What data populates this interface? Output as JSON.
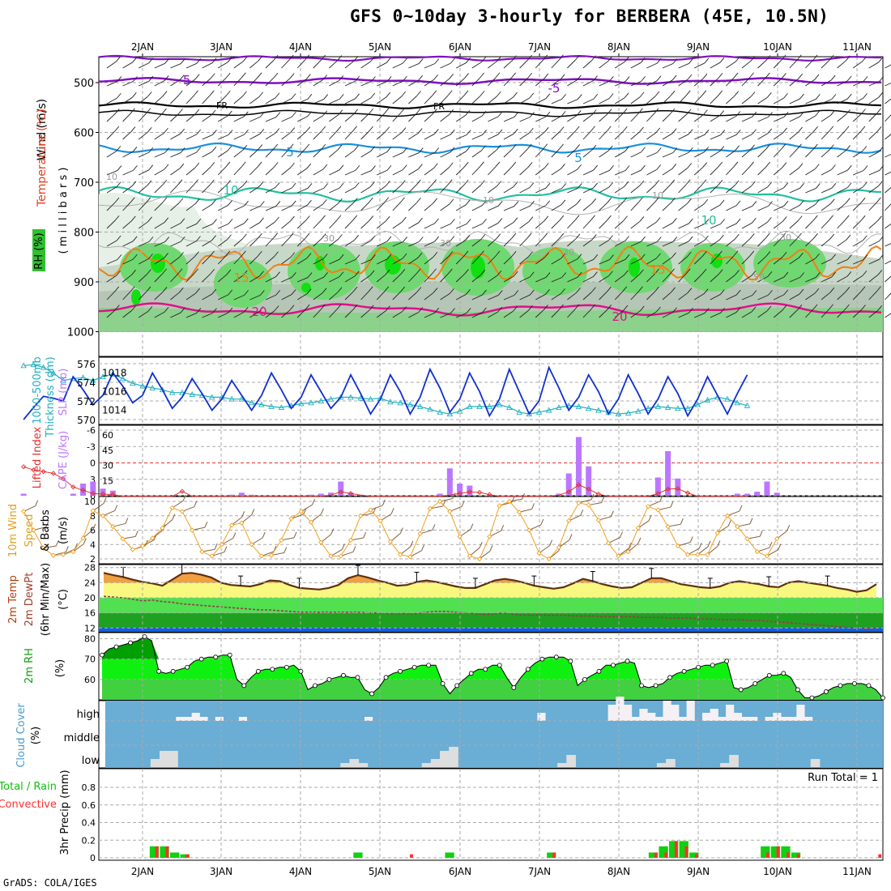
{
  "title": "GFS 0~10day 3-hourly for BERBERA (45E, 10.5N)",
  "footer": "GrADS: COLA/IGES",
  "colors": {
    "grid": "#aaaaaa",
    "cape": "#bb77ff",
    "lifted": "#e03030",
    "slp": "#1030d0",
    "thickness": "#20b0c0",
    "wind_speed": "#f0a020",
    "barb": "#806040",
    "rh_dark": "#00b000",
    "rh_light": "#10f010",
    "cloud_bg": "#6aadd5",
    "cloud_bar": "#dedede",
    "precip_total": "#10d010",
    "precip_conv": "#ff3030"
  },
  "x_axis": {
    "labels": [
      "2JAN",
      "3JAN",
      "4JAN",
      "5JAN",
      "6JAN",
      "7JAN",
      "8JAN",
      "9JAN",
      "10JAN",
      "11JAN"
    ]
  },
  "panels": {
    "upper": {
      "labels": [
        "Wind (m/s)",
        "Temperature (°C)",
        "RH (%)",
        "( m i l l i b a r s )"
      ],
      "yticks": [
        "500",
        "600",
        "700",
        "800",
        "900",
        "1000"
      ],
      "contour_labels": [
        "-5",
        "-5",
        "FR",
        "FR",
        "5",
        "5",
        "10",
        "10",
        "15",
        "15",
        "20",
        "20",
        "10",
        "10",
        "10",
        "30",
        "30",
        "30",
        "30",
        "50"
      ]
    },
    "slp": {
      "labels": [
        "1000-500mb",
        "Thickness (dm)",
        "SLP (mb)"
      ],
      "left_ticks": [
        "576",
        "574",
        "572",
        "570"
      ],
      "right_ticks": [
        "1018",
        "1016",
        "1014"
      ]
    },
    "cape": {
      "labels": [
        "Lifted Index",
        "CAPE (J/kg)"
      ],
      "left_ticks": [
        "-6",
        "-3",
        "0",
        "3",
        "6"
      ],
      "right_ticks": [
        "60",
        "45",
        "30",
        "15"
      ]
    },
    "wind": {
      "labels": [
        "10m Wind",
        "Speed",
        "& Barbs",
        "(m/s)"
      ],
      "ticks": [
        "10",
        "8",
        "6",
        "4",
        "2"
      ]
    },
    "temp": {
      "labels": [
        "2m Temp",
        "2m DewPt",
        "(6hr Min/Max)",
        "(°C)"
      ],
      "ticks": [
        "28",
        "24",
        "20",
        "16",
        "12"
      ]
    },
    "rh": {
      "labels": [
        "2m RH",
        "(%)"
      ],
      "ticks": [
        "80",
        "70",
        "60"
      ]
    },
    "cloud": {
      "labels": [
        "Cloud Cover",
        "(%)"
      ],
      "levels": [
        "high",
        "middle",
        "low"
      ]
    },
    "precip": {
      "labels": [
        "3hr Precip (mm)",
        "Total / Rain",
        "Convective"
      ],
      "ticks": [
        "0.8",
        "0.6",
        "0.4",
        "0.2",
        "0"
      ],
      "run_total": "Run Total = 1"
    }
  },
  "chart_data": [
    {
      "type": "line",
      "name": "SLP",
      "x_unit": "3-hourly steps from 1 Jan 12Z",
      "y_unit": "mb",
      "ylim": [
        1012.5,
        1019.5
      ],
      "values": [
        1013.0,
        1014.3,
        1015.5,
        1015.3,
        1015.0,
        1017.6,
        1016.2,
        1014.6,
        1015.6,
        1018.0,
        1016.6,
        1014.8,
        1015.6,
        1018.0,
        1016.2,
        1014.2,
        1015.4,
        1017.4,
        1015.8,
        1014.0,
        1015.2,
        1017.2,
        1015.6,
        1014.0,
        1015.6,
        1018.0,
        1016.2,
        1014.2,
        1015.4,
        1017.8,
        1016.0,
        1014.2,
        1015.4,
        1017.8,
        1015.8,
        1013.6,
        1015.2,
        1017.8,
        1016.0,
        1013.6,
        1015.4,
        1018.4,
        1016.4,
        1013.8,
        1015.2,
        1018.0,
        1016.0,
        1013.4,
        1015.2,
        1018.4,
        1016.0,
        1013.6,
        1015.0,
        1018.6,
        1016.4,
        1014.0,
        1015.4,
        1017.8,
        1016.0,
        1013.6,
        1015.2,
        1017.8,
        1015.8,
        1013.6,
        1015.2,
        1017.6,
        1015.8,
        1013.4,
        1015.2,
        1017.6,
        1015.6,
        1013.6,
        1015.8,
        1017.8
      ]
    },
    {
      "type": "line",
      "name": "Thickness",
      "y_unit": "dm",
      "ylim": [
        569.6,
        576.4
      ],
      "values": [
        575.8,
        575.9,
        575.6,
        575.0,
        574.2,
        574.4,
        574.5,
        574.2,
        574.6,
        574.9,
        574.4,
        573.9,
        573.6,
        573.4,
        573.2,
        572.9,
        572.9,
        572.7,
        572.6,
        572.4,
        572.4,
        572.2,
        572.2,
        571.8,
        571.6,
        571.4,
        571.3,
        571.5,
        571.7,
        571.8,
        572.0,
        572.2,
        572.4,
        572.4,
        572.3,
        572.2,
        572.3,
        571.9,
        571.8,
        571.6,
        571.4,
        571.1,
        570.8,
        570.6,
        570.9,
        571.4,
        571.4,
        571.4,
        571.6,
        571.3,
        570.8,
        570.6,
        570.8,
        571.0,
        571.3,
        571.5,
        571.4,
        571.2,
        571.0,
        570.8,
        570.6,
        570.7,
        570.9,
        571.2,
        571.4,
        571.3,
        571.2,
        571.2,
        571.6,
        572.1,
        572.4,
        572.2,
        571.8,
        571.5
      ]
    },
    {
      "type": "bar",
      "name": "CAPE",
      "y_unit": "J/kg",
      "ylim": [
        0,
        60
      ],
      "values": [
        2,
        0,
        0,
        0,
        0,
        2,
        12,
        14,
        7,
        5,
        0,
        0,
        0,
        0,
        0,
        0,
        0,
        0,
        0,
        0,
        0,
        1,
        3,
        1,
        0,
        0,
        0,
        0,
        0,
        1,
        2,
        3,
        14,
        3,
        1,
        0,
        0,
        0,
        0,
        0,
        0,
        0,
        2,
        27,
        12,
        10,
        0,
        0,
        0,
        0,
        0,
        0,
        0,
        0,
        2,
        22,
        58,
        29,
        0,
        0,
        0,
        0,
        0,
        0,
        18,
        44,
        17,
        0,
        0,
        0,
        0,
        0,
        2,
        2,
        4,
        14,
        3,
        0,
        0,
        0,
        0,
        0,
        0,
        0,
        0
      ]
    },
    {
      "type": "line",
      "name": "Lifted Index",
      "y_unit": "°C",
      "ylim": [
        -6,
        6
      ],
      "values": [
        0.7,
        1.3,
        1.6,
        1.9,
        2.9,
        4.4,
        5.0,
        5.6,
        5.7,
        5.8,
        6.1,
        6.1,
        6.1,
        6.1,
        6.1,
        6.1,
        5.2,
        6.1,
        6.1,
        6.1,
        6.1,
        6.1,
        6.1,
        6.1,
        6.1,
        6.1,
        6.1,
        6.1,
        6.1,
        6.1,
        6.1,
        5.9,
        5.3,
        5.6,
        5.9,
        6.1,
        6.1,
        6.1,
        6.1,
        6.1,
        6.1,
        6.1,
        6.1,
        5.9,
        5.6,
        5.3,
        5.4,
        5.8,
        6.1,
        6.1,
        6.1,
        6.1,
        6.1,
        6.1,
        5.9,
        5.3,
        4.0,
        4.8,
        5.7,
        6.1,
        6.1,
        6.1,
        6.1,
        6.1,
        5.6,
        4.8,
        4.7,
        5.5,
        6.1,
        6.1,
        6.1,
        6.1,
        6.1,
        6.1
      ]
    },
    {
      "type": "line",
      "name": "10m Wind Speed",
      "y_unit": "m/s",
      "ylim": [
        1.6,
        10.4
      ],
      "values": [
        8.6,
        6.0,
        3.5,
        2.5,
        2.6,
        3.0,
        4.9,
        8.7,
        8.0,
        6.5,
        4.8,
        3.3,
        3.8,
        4.9,
        6.3,
        9.1,
        8.6,
        6.0,
        3.0,
        2.4,
        4.0,
        6.7,
        7.0,
        4.0,
        2.4,
        2.5,
        4.6,
        7.6,
        8.6,
        7.1,
        4.3,
        2.4,
        2.4,
        4.6,
        8.0,
        8.8,
        7.3,
        4.4,
        2.6,
        2.3,
        5.5,
        9.0,
        10.0,
        8.6,
        5.1,
        2.4,
        2.0,
        5.1,
        9.4,
        10.0,
        8.5,
        6.0,
        2.8,
        2.0,
        3.6,
        7.3,
        9.8,
        9.5,
        7.4,
        4.2,
        2.4,
        3.0,
        6.3,
        9.3,
        8.8,
        6.5,
        3.8,
        2.6,
        2.6,
        2.6,
        5.6,
        8.0,
        6.5,
        4.8,
        3.0,
        2.4,
        4.8
      ]
    },
    {
      "type": "area",
      "name": "2m Temp",
      "y_unit": "°C",
      "ylim": [
        11,
        28.8
      ],
      "values": [
        26.6,
        26.0,
        25.5,
        24.8,
        24.2,
        23.8,
        23.2,
        24.8,
        26.4,
        26.6,
        26.1,
        25.4,
        24.0,
        23.4,
        23.2,
        23.0,
        23.6,
        24.6,
        24.4,
        23.4,
        22.6,
        22.4,
        22.2,
        22.6,
        23.4,
        25.2,
        26.0,
        25.4,
        24.6,
        24.0,
        23.2,
        23.4,
        24.2,
        24.6,
        24.2,
        23.6,
        23.0,
        22.6,
        22.6,
        23.6,
        24.6,
        25.0,
        24.6,
        24.0,
        23.2,
        22.8,
        22.4,
        22.8,
        23.8,
        25.0,
        24.4,
        23.6,
        23.0,
        22.6,
        22.8,
        24.0,
        25.2,
        25.2,
        24.4,
        23.6,
        23.2,
        22.8,
        22.6,
        23.0,
        24.0,
        24.4,
        24.0,
        23.6,
        23.0,
        22.8,
        24.0,
        24.4,
        24.0,
        23.6,
        23.2,
        22.6,
        22.2,
        21.6,
        22.0,
        23.6
      ]
    },
    {
      "type": "line",
      "name": "2m DewPt",
      "y_unit": "°C",
      "values": [
        20.4,
        20.2,
        20.0,
        19.6,
        19.2,
        19.4,
        19.0,
        18.8,
        18.4,
        18.2,
        18.0,
        17.8,
        17.6,
        17.4,
        17.2,
        17.0,
        16.8,
        16.8,
        16.6,
        16.4,
        16.2,
        16.2,
        16.2,
        16.2,
        16.2,
        16.2,
        16.2,
        16.0,
        16.0,
        15.8,
        15.8,
        15.8,
        15.8,
        16.2,
        16.4,
        16.4,
        16.2,
        16.0,
        15.8,
        15.6,
        15.8,
        16.0,
        15.6,
        15.4,
        15.4,
        15.4,
        15.4,
        15.4,
        15.2,
        15.2,
        15.2,
        15.0,
        15.0,
        15.0,
        15.0,
        14.8,
        14.8,
        14.8,
        14.6,
        14.6,
        14.6,
        14.4,
        14.4,
        14.2,
        14.2,
        14.2,
        14.0,
        14.0,
        13.8,
        13.6,
        13.4,
        13.2,
        13.0,
        12.8,
        12.6,
        12.4,
        12.2,
        12.0,
        11.8,
        11.6
      ]
    },
    {
      "type": "area",
      "name": "2m RH",
      "y_unit": "%",
      "ylim": [
        50,
        83
      ],
      "values": [
        72,
        75,
        76,
        77,
        78,
        79,
        81,
        79,
        64,
        63,
        64,
        65,
        66,
        69,
        70,
        71,
        71,
        72,
        72,
        60,
        57,
        61,
        64,
        65,
        65,
        66,
        66,
        67,
        64,
        55,
        57,
        58,
        60,
        61,
        62,
        61,
        61,
        55,
        53,
        56,
        61,
        63,
        64,
        65,
        66,
        67,
        67,
        67,
        58,
        53,
        57,
        60,
        63,
        65,
        65,
        67,
        67,
        61,
        56,
        61,
        65,
        68,
        70,
        71,
        71,
        71,
        69,
        57,
        60,
        62,
        64,
        67,
        67,
        68,
        69,
        68,
        57,
        56,
        57,
        58,
        61,
        63,
        64,
        65,
        66,
        67,
        67,
        68,
        69,
        56,
        55,
        56,
        58,
        60,
        62,
        62,
        63,
        61,
        55,
        51,
        51,
        52,
        54,
        56,
        57,
        58,
        58,
        58,
        57,
        55,
        51
      ]
    },
    {
      "type": "bar",
      "name": "Cloud Cover",
      "series": [
        {
          "name": "high",
          "values": [
            0,
            0,
            0,
            0,
            0,
            0,
            0,
            0,
            0,
            5,
            5,
            10,
            5,
            0,
            5,
            0,
            0,
            5,
            0,
            0,
            0,
            0,
            0,
            0,
            0,
            0,
            0,
            0,
            0,
            0,
            0,
            0,
            0,
            5,
            0,
            0,
            0,
            0,
            0,
            0,
            0,
            0,
            0,
            0,
            0,
            0,
            0,
            0,
            0,
            0,
            0,
            0,
            0,
            0,
            0,
            10,
            0,
            0,
            0,
            0,
            0,
            0,
            0,
            0,
            20,
            30,
            20,
            5,
            15,
            10,
            5,
            25,
            20,
            5,
            25,
            0,
            10,
            15,
            5,
            20,
            10,
            5,
            5,
            0,
            5,
            10,
            5,
            5,
            20,
            5,
            0,
            0,
            0,
            0,
            0,
            0,
            0,
            0,
            0
          ]
        },
        {
          "name": "middle",
          "values": [
            0
          ]
        },
        {
          "name": "low",
          "values": [
            0,
            0,
            0,
            0,
            0,
            10,
            20,
            20,
            0,
            0,
            0,
            0,
            0,
            0,
            0,
            0,
            0,
            0,
            0,
            0,
            0,
            0,
            0,
            0,
            0,
            0,
            5,
            10,
            5,
            0,
            0,
            0,
            0,
            0,
            0,
            5,
            10,
            20,
            25,
            0,
            0,
            0,
            0,
            0,
            0,
            0,
            0,
            0,
            0,
            0,
            5,
            15,
            0,
            0,
            0,
            0,
            0,
            0,
            0,
            0,
            0,
            5,
            10,
            0,
            0,
            0,
            0,
            0,
            5,
            15,
            0,
            0,
            0,
            0,
            0,
            0,
            0,
            0,
            10,
            0,
            0,
            0,
            0,
            0,
            0,
            0
          ]
        }
      ]
    },
    {
      "type": "bar",
      "name": "3hr Precip",
      "y_unit": "mm",
      "ylim": [
        0,
        1
      ],
      "series": [
        {
          "name": "Total / Rain",
          "values": [
            0,
            0,
            0,
            0,
            0,
            0.13,
            0.13,
            0.06,
            0.04,
            0,
            0,
            0,
            0,
            0,
            0,
            0,
            0,
            0,
            0,
            0,
            0,
            0,
            0,
            0,
            0,
            0.06,
            0,
            0,
            0,
            0,
            0,
            0,
            0,
            0,
            0.06,
            0,
            0,
            0,
            0,
            0,
            0,
            0,
            0,
            0,
            0.06,
            0,
            0,
            0,
            0,
            0,
            0,
            0,
            0,
            0,
            0.06,
            0.13,
            0.19,
            0.19,
            0.06,
            0,
            0,
            0,
            0,
            0,
            0,
            0.13,
            0.13,
            0.13,
            0.06,
            0,
            0,
            0,
            0,
            0,
            0,
            0,
            0
          ]
        },
        {
          "name": "Convective",
          "values": [
            0,
            0,
            0,
            0,
            0,
            0.13,
            0.13,
            0,
            0.04,
            0,
            0,
            0,
            0,
            0,
            0,
            0,
            0,
            0,
            0,
            0,
            0,
            0,
            0,
            0,
            0,
            0,
            0,
            0,
            0,
            0,
            0.04,
            0,
            0,
            0,
            0,
            0,
            0,
            0,
            0,
            0,
            0,
            0,
            0,
            0,
            0.06,
            0,
            0,
            0,
            0,
            0,
            0,
            0,
            0,
            0,
            0.06,
            0.06,
            0.19,
            0.13,
            0.04,
            0,
            0,
            0,
            0,
            0,
            0,
            0.06,
            0.13,
            0.06,
            0.04,
            0,
            0,
            0,
            0,
            0,
            0,
            0,
            0.04
          ]
        }
      ]
    }
  ]
}
